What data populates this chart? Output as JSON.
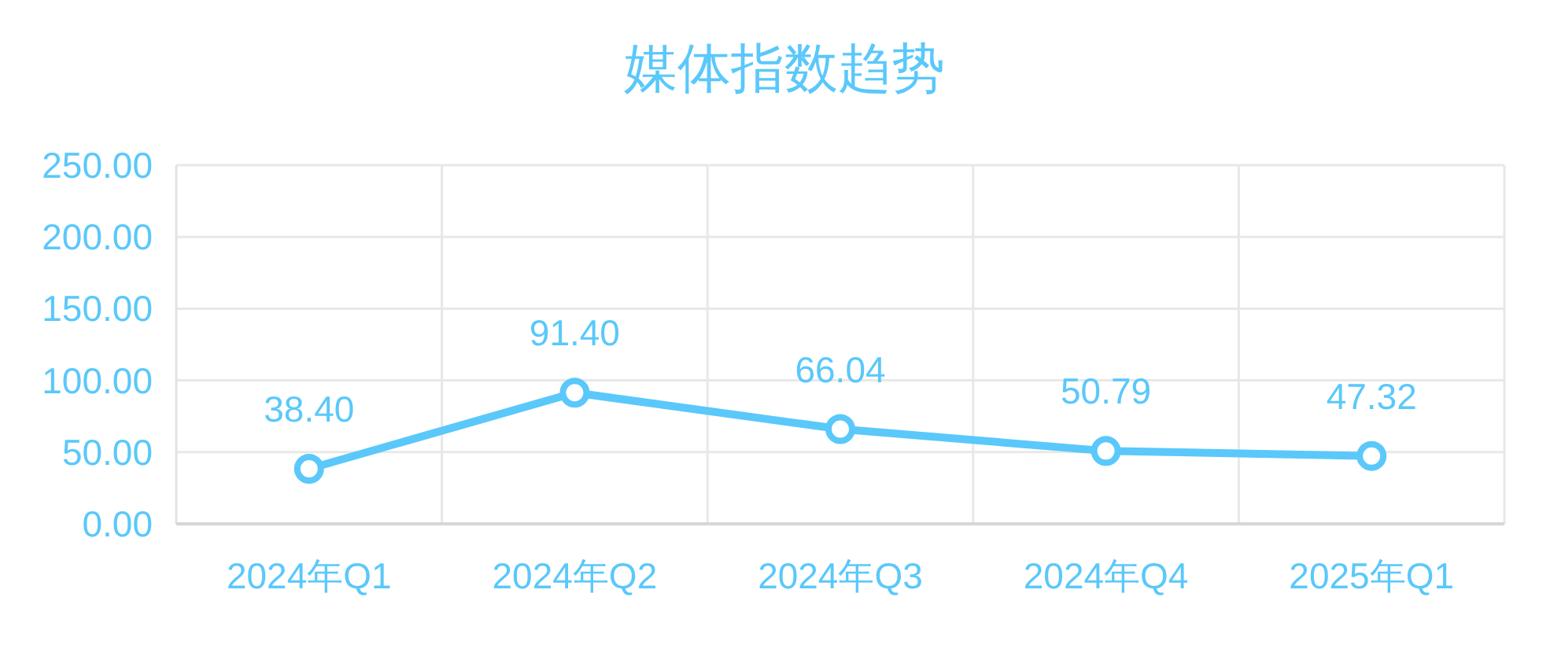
{
  "chart_data": {
    "type": "line",
    "title": "媒体指数趋势",
    "categories": [
      "2024年Q1",
      "2024年Q2",
      "2024年Q3",
      "2024年Q4",
      "2025年Q1"
    ],
    "values": [
      38.4,
      91.4,
      66.04,
      50.79,
      47.32
    ],
    "value_labels": [
      "38.40",
      "91.40",
      "66.04",
      "50.79",
      "47.32"
    ],
    "color": "#5ac8fa",
    "ylim": [
      0,
      250
    ],
    "yticks": [
      {
        "value": 0,
        "label": "0.00"
      },
      {
        "value": 50,
        "label": "50.00"
      },
      {
        "value": 100,
        "label": "100.00"
      },
      {
        "value": 150,
        "label": "150.00"
      },
      {
        "value": 200,
        "label": "200.00"
      },
      {
        "value": 250,
        "label": "250.00"
      }
    ],
    "grid": true,
    "marker": "circle",
    "line_style": "solid"
  }
}
